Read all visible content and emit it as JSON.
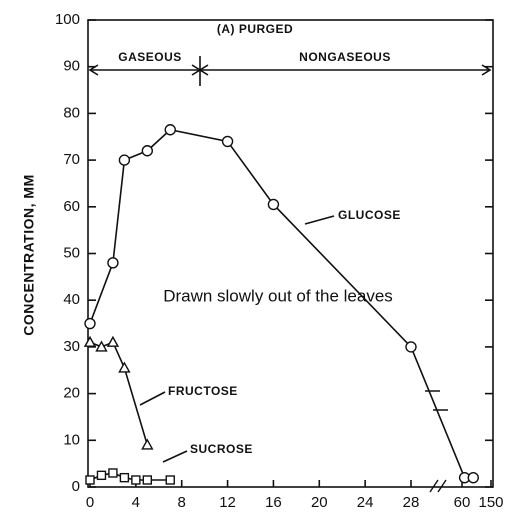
{
  "chart_data": {
    "type": "line",
    "title": "(A) PURGED",
    "y_label": "CONCENTRATION, MM",
    "phase_labels": [
      "GASEOUS",
      "NONGASEOUS"
    ],
    "annotation": "Drawn slowly out of the leaves",
    "series": [
      {
        "name": "GLUCOSE",
        "color": "#111111",
        "marker": "circle",
        "x": [
          0,
          2,
          3,
          5,
          7,
          12,
          16,
          28,
          68,
          95
        ],
        "values": [
          35,
          48,
          70,
          72,
          76.5,
          74,
          60.5,
          30,
          2,
          2
        ]
      },
      {
        "name": "FRUCTOSE",
        "color": "#111111",
        "marker": "triangle",
        "x": [
          0,
          1,
          2,
          3,
          5
        ],
        "values": [
          31,
          30,
          31,
          25.5,
          9
        ]
      },
      {
        "name": "SUCROSE",
        "color": "#111111",
        "marker": "square",
        "x": [
          0,
          1,
          2,
          3,
          4,
          5,
          7
        ],
        "values": [
          1.5,
          2.5,
          3,
          2,
          1.5,
          1.5,
          1.5
        ]
      }
    ],
    "xlim": [
      0,
      150
    ],
    "xticks": [
      0,
      4,
      8,
      12,
      16,
      20,
      24,
      28,
      60,
      150
    ],
    "ylim": [
      0,
      100
    ],
    "yticks": [
      0,
      10,
      20,
      30,
      40,
      50,
      60,
      70,
      80,
      90,
      100
    ]
  }
}
